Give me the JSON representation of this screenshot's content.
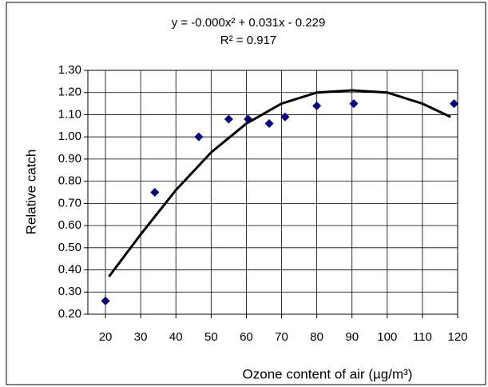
{
  "chart_data": {
    "type": "scatter",
    "annotations": [
      "y = -0.000x² + 0.031x - 0.229",
      "R² = 0.917"
    ],
    "xlabel": "Ozone content of air (µg/m³)",
    "ylabel": "Relative catch",
    "xlim": [
      15,
      120
    ],
    "ylim": [
      0.2,
      1.3
    ],
    "xticks": [
      20,
      30,
      40,
      50,
      60,
      70,
      80,
      90,
      100,
      110,
      120
    ],
    "yticks": [
      {
        "value": 0.2,
        "label": "0.20"
      },
      {
        "value": 0.3,
        "label": "0.30"
      },
      {
        "value": 0.4,
        "label": "0.40"
      },
      {
        "value": 0.5,
        "label": "0.50"
      },
      {
        "value": 0.6,
        "label": "0.60"
      },
      {
        "value": 0.7,
        "label": "0.70"
      },
      {
        "value": 0.8,
        "label": "0.80"
      },
      {
        "value": 0.9,
        "label": "0.90"
      },
      {
        "value": 1.0,
        "label": "1.00"
      },
      {
        "value": 1.1,
        "label": "1.10"
      },
      {
        "value": 1.2,
        "label": "1.20"
      },
      {
        "value": 1.3,
        "label": "1.30"
      }
    ],
    "grid": true,
    "series": [
      {
        "mode": "markers",
        "color": "#000080",
        "x": [
          20,
          34,
          46.5,
          55,
          60.5,
          66.5,
          71,
          80,
          90.5,
          119
        ],
        "values": [
          0.26,
          0.75,
          1.0,
          1.08,
          1.08,
          1.06,
          1.09,
          1.14,
          1.15,
          1.15
        ]
      },
      {
        "mode": "line",
        "color": "#000000",
        "x": [
          21,
          30,
          40,
          50,
          60,
          70,
          80,
          90,
          100,
          110,
          118
        ],
        "values": [
          0.37,
          0.56,
          0.76,
          0.93,
          1.06,
          1.15,
          1.2,
          1.21,
          1.2,
          1.15,
          1.09
        ]
      }
    ]
  }
}
